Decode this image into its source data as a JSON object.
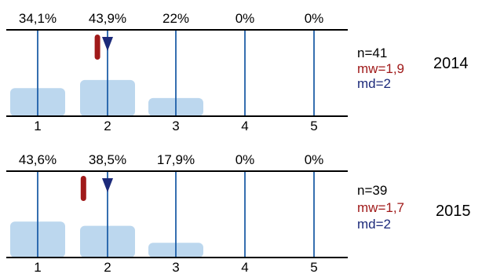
{
  "chart_data": [
    {
      "type": "bar",
      "categories": [
        "1",
        "2",
        "3",
        "4",
        "5"
      ],
      "values": [
        34.1,
        43.9,
        22,
        0,
        0
      ],
      "pct_labels": [
        "34,1%",
        "43,9%",
        "22%",
        "0%",
        "0%"
      ],
      "stats": {
        "n": "n=41",
        "mw": "mw=1,9",
        "md": "md=2"
      },
      "mean": 1.9,
      "median": 2,
      "year": "2014"
    },
    {
      "type": "bar",
      "categories": [
        "1",
        "2",
        "3",
        "4",
        "5"
      ],
      "values": [
        43.6,
        38.5,
        17.9,
        0,
        0
      ],
      "pct_labels": [
        "43,6%",
        "38,5%",
        "17,9%",
        "0%",
        "0%"
      ],
      "stats": {
        "n": "n=39",
        "mw": "mw=1,7",
        "md": "md=2"
      },
      "mean": 1.7,
      "median": 2,
      "year": "2015"
    }
  ],
  "colors": {
    "bar": "#bcd7ee",
    "vline": "#1f5fa8",
    "axis": "#000000",
    "mean": "#a01a1a",
    "median": "#1c2a7a"
  }
}
